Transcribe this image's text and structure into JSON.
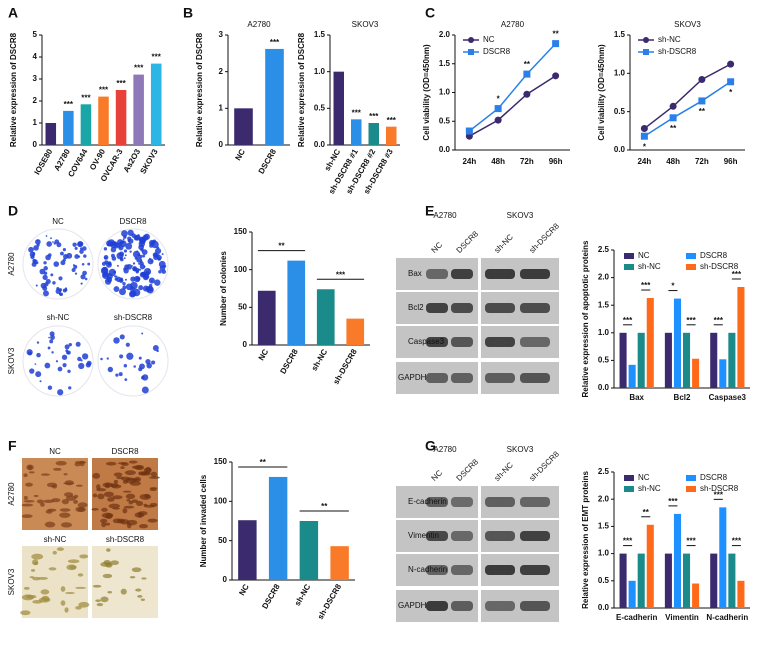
{
  "panel_labels": [
    "A",
    "B",
    "C",
    "D",
    "E",
    "F",
    "G"
  ],
  "colony_images": {
    "top_labels": [
      "NC",
      "DSCR8"
    ],
    "bottom_labels": [
      "sh-NC",
      "sh-DSCR8"
    ],
    "row_labels": [
      "A2780",
      "SKOV3"
    ]
  },
  "invasion_images": {
    "top_labels": [
      "NC",
      "DSCR8"
    ],
    "bottom_labels": [
      "sh-NC",
      "sh-DSCR8"
    ],
    "row_labels": [
      "A2780",
      "SKOV3"
    ]
  },
  "blots_E": {
    "cell_lines": [
      "A2780",
      "SKOV3"
    ],
    "lanes": [
      "NC",
      "DSCR8",
      "sh-NC",
      "sh-DSCR8"
    ],
    "proteins": [
      "Bax",
      "Bcl2",
      "Caspase3",
      "GAPDH"
    ]
  },
  "blots_G": {
    "cell_lines": [
      "A2780",
      "SKOV3"
    ],
    "lanes": [
      "NC",
      "DSCR8",
      "sh-NC",
      "sh-DSCR8"
    ],
    "proteins": [
      "E-cadherin",
      "Vimentin",
      "N-cadherin",
      "GAPDH"
    ]
  },
  "chart_data": [
    {
      "type": "bar",
      "y_label": "Relative expression of DSCR8",
      "categories": [
        "IOSE80",
        "A2780",
        "COV644",
        "OV-90",
        "OVCAR-3",
        "As2O3",
        "SKOV3"
      ],
      "values": [
        1,
        1.55,
        1.85,
        2.2,
        2.5,
        3.2,
        3.7
      ],
      "colors": [
        "#3b2a6e",
        "#2b8fe8",
        "#1aa6a6",
        "#f97b2a",
        "#e8413a",
        "#8e78b8",
        "#2bb6e6"
      ],
      "ylim": [
        0,
        5
      ],
      "yticks": [
        0,
        1,
        2,
        3,
        4,
        5
      ],
      "significance": [
        null,
        "***",
        "***",
        "***",
        "***",
        "***",
        "***"
      ]
    },
    {
      "type": "bar",
      "title": "A2780",
      "y_label": "Relative expression of DSCR8",
      "categories": [
        "NC",
        "DSCR8"
      ],
      "values": [
        1,
        2.62
      ],
      "colors": [
        "#3b2a6e",
        "#2b8fe8"
      ],
      "ylim": [
        0,
        3
      ],
      "yticks": [
        0,
        1,
        2,
        3
      ],
      "significance": [
        null,
        "***"
      ]
    },
    {
      "type": "bar",
      "title": "SKOV3",
      "y_label": "Relative expression of DSCR8",
      "categories": [
        "sh-NC",
        "sh-DSCR8 #1",
        "sh-DSCR8 #2",
        "sh-DSCR8 #3"
      ],
      "values": [
        1,
        0.35,
        0.3,
        0.25
      ],
      "colors": [
        "#3b2a6e",
        "#2b8fe8",
        "#1a8a8a",
        "#f97b2a"
      ],
      "ylim": [
        0,
        1.5
      ],
      "yticks": [
        {
          "value": 0,
          "label": "0.0"
        },
        {
          "value": 0.5,
          "label": "0.5"
        },
        {
          "value": 1,
          "label": "1.0"
        },
        {
          "value": 1.5,
          "label": "1.5"
        }
      ],
      "significance": [
        null,
        "***",
        "***",
        "***"
      ]
    },
    {
      "type": "line",
      "title": "A2780",
      "y_label": "Cell viability (OD=450nm)",
      "categories": [
        "24h",
        "48h",
        "72h",
        "96h"
      ],
      "series": [
        {
          "name": "NC",
          "color": "#3b2a6e",
          "values": [
            0.24,
            0.52,
            0.97,
            1.29
          ]
        },
        {
          "name": "DSCR8",
          "color": "#2b7fe8",
          "values": [
            0.33,
            0.72,
            1.32,
            1.85
          ],
          "significance": [
            null,
            "*",
            "**",
            "**"
          ]
        }
      ],
      "ylim": [
        0,
        2
      ],
      "yticks": [
        {
          "value": 0,
          "label": "0.0"
        },
        {
          "value": 0.5,
          "label": "0.5"
        },
        {
          "value": 1,
          "label": "1.0"
        },
        {
          "value": 1.5,
          "label": "1.5"
        },
        {
          "value": 2,
          "label": "2.0"
        }
      ]
    },
    {
      "type": "line",
      "title": "SKOV3",
      "y_label": "Cell viability (OD=450nm)",
      "categories": [
        "24h",
        "48h",
        "72h",
        "96h"
      ],
      "series": [
        {
          "name": "sh-NC",
          "color": "#3b2a6e",
          "values": [
            0.28,
            0.57,
            0.92,
            1.12
          ]
        },
        {
          "name": "sh-DSCR8",
          "color": "#2b7fe8",
          "values": [
            0.18,
            0.42,
            0.64,
            0.89
          ],
          "significance": [
            "*",
            "**",
            "**",
            "*"
          ]
        }
      ],
      "ylim": [
        0,
        1.5
      ],
      "yticks": [
        {
          "value": 0,
          "label": "0.0"
        },
        {
          "value": 0.5,
          "label": "0.5"
        },
        {
          "value": 1,
          "label": "1.0"
        },
        {
          "value": 1.5,
          "label": "1.5"
        }
      ]
    },
    {
      "type": "bar",
      "y_label": "Number of colonies",
      "categories": [
        "NC",
        "DSCR8",
        "sh-NC",
        "sh-DSCR8"
      ],
      "values": [
        72,
        112,
        74,
        35
      ],
      "colors": [
        "#3b2a6e",
        "#2b8fe8",
        "#1a8a8a",
        "#f97b2a"
      ],
      "ylim": [
        0,
        150
      ],
      "yticks": [
        0,
        50,
        100,
        150
      ],
      "significance": [
        "**",
        "***"
      ]
    },
    {
      "type": "bar",
      "y_label": "Relative expression of apoptotic proteins",
      "categories": [
        "Bax",
        "Bcl2",
        "Caspase3"
      ],
      "series": [
        {
          "name": "NC",
          "color": "#3b2a6e",
          "values": [
            1,
            1,
            1
          ]
        },
        {
          "name": "DSCR8",
          "color": "#1e90ff",
          "values": [
            0.42,
            1.62,
            0.52
          ]
        },
        {
          "name": "sh-NC",
          "color": "#1a8a8a",
          "values": [
            1,
            1,
            1
          ]
        },
        {
          "name": "sh-DSCR8",
          "color": "#ff6a1a",
          "values": [
            1.63,
            0.53,
            1.83
          ]
        }
      ],
      "ylim": [
        0,
        2.5
      ],
      "yticks": [
        {
          "value": 0,
          "label": "0.0"
        },
        {
          "value": 0.5,
          "label": "0.5"
        },
        {
          "value": 1,
          "label": "1.0"
        },
        {
          "value": 1.5,
          "label": "1.5"
        },
        {
          "value": 2,
          "label": "2.0"
        },
        {
          "value": 2.5,
          "label": "2.5"
        }
      ],
      "significance": [
        [
          "***",
          "***"
        ],
        [
          "*",
          "***"
        ],
        [
          "***",
          "***"
        ]
      ]
    },
    {
      "type": "bar",
      "y_label": "Number of invaded cells",
      "categories": [
        "NC",
        "DSCR8",
        "sh-NC",
        "sh-DSCR8"
      ],
      "values": [
        76,
        131,
        75,
        43
      ],
      "colors": [
        "#3b2a6e",
        "#2b8fe8",
        "#1a8a8a",
        "#f97b2a"
      ],
      "ylim": [
        0,
        150
      ],
      "yticks": [
        0,
        50,
        100,
        150
      ],
      "significance": [
        "**",
        "**"
      ]
    },
    {
      "type": "bar",
      "y_label": "Relative expression of EMT proteins",
      "categories": [
        "E-cadherin",
        "Vimentin",
        "N-cadherin"
      ],
      "series": [
        {
          "name": "NC",
          "color": "#3b2a6e",
          "values": [
            1,
            1,
            1
          ]
        },
        {
          "name": "DSCR8",
          "color": "#1e90ff",
          "values": [
            0.5,
            1.73,
            1.85
          ]
        },
        {
          "name": "sh-NC",
          "color": "#1a8a8a",
          "values": [
            1,
            1,
            1
          ]
        },
        {
          "name": "sh-DSCR8",
          "color": "#ff6a1a",
          "values": [
            1.53,
            0.45,
            0.5
          ]
        }
      ],
      "ylim": [
        0,
        2.5
      ],
      "yticks": [
        {
          "value": 0,
          "label": "0.0"
        },
        {
          "value": 0.5,
          "label": "0.5"
        },
        {
          "value": 1,
          "label": "1.0"
        },
        {
          "value": 1.5,
          "label": "1.5"
        },
        {
          "value": 2,
          "label": "2.0"
        },
        {
          "value": 2.5,
          "label": "2.5"
        }
      ],
      "significance": [
        [
          "***",
          "**"
        ],
        [
          "***",
          "***"
        ],
        [
          "***",
          "***"
        ]
      ]
    }
  ]
}
